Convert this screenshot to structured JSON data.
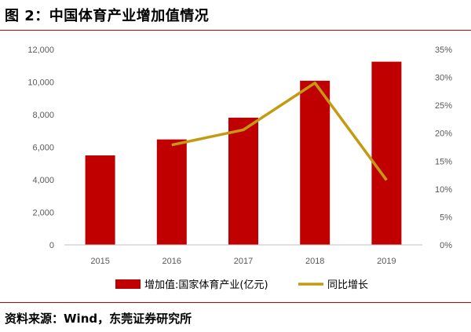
{
  "figure": {
    "title": "图 2：中国体育产业增加值情况",
    "source": "资料来源：Wind，东莞证券研究所"
  },
  "colors": {
    "bar": "#c00000",
    "line": "#c49a12",
    "rule": "#c00000"
  },
  "chart_data": {
    "type": "bar",
    "categories": [
      "2015",
      "2016",
      "2017",
      "2018",
      "2019"
    ],
    "series": [
      {
        "name": "增加值:国家体育产业(亿元)",
        "type": "bar",
        "axis": "left",
        "values": [
          5494,
          6475,
          7811,
          10078,
          11248
        ]
      },
      {
        "name": "同比增长",
        "type": "line",
        "axis": "right",
        "values": [
          null,
          17.9,
          20.6,
          29.0,
          11.6
        ]
      }
    ],
    "y_left": {
      "min": 0,
      "max": 12000,
      "step": 2000,
      "ticks": [
        "0",
        "2,000",
        "4,000",
        "6,000",
        "8,000",
        "10,000",
        "12,000"
      ]
    },
    "y_right": {
      "min": 0,
      "max": 35,
      "step": 5,
      "ticks": [
        "0%",
        "5%",
        "10%",
        "15%",
        "20%",
        "25%",
        "30%",
        "35%"
      ]
    },
    "legend_position": "bottom",
    "grid": false
  }
}
